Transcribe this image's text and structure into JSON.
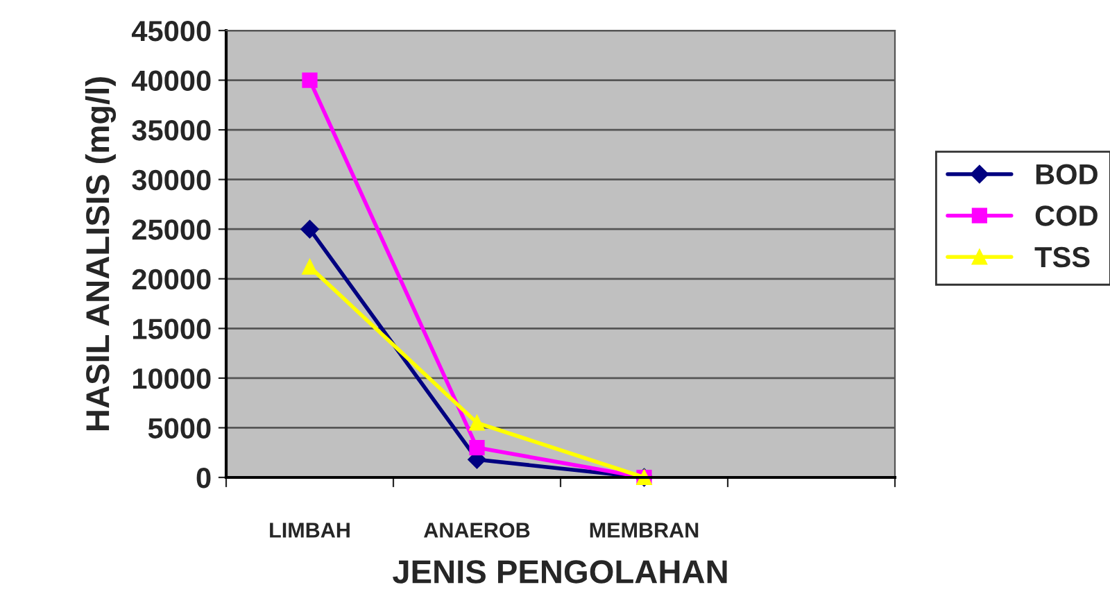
{
  "chart_data": {
    "type": "line",
    "xlabel": "JENIS PENGOLAHAN",
    "ylabel": "HASIL ANALISIS (mg/l)",
    "categories": [
      "LIMBAH",
      "ANAEROB",
      "MEMBRAN",
      null
    ],
    "series": [
      {
        "name": "BOD",
        "color": "#000080",
        "marker": "diamond",
        "values": [
          25000,
          1800,
          0,
          null
        ]
      },
      {
        "name": "COD",
        "color": "#ff00ff",
        "marker": "square",
        "values": [
          40000,
          3000,
          0,
          null
        ]
      },
      {
        "name": "TSS",
        "color": "#ffff00",
        "marker": "triangle",
        "values": [
          21200,
          5500,
          0,
          null
        ]
      }
    ],
    "ylim": [
      0,
      45000
    ],
    "yticks": [
      0,
      5000,
      10000,
      15000,
      20000,
      25000,
      30000,
      35000,
      40000,
      45000
    ],
    "grid": "y",
    "legend": "right"
  }
}
